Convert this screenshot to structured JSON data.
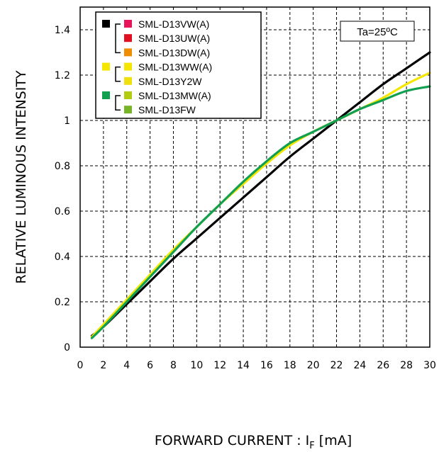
{
  "chart_data": {
    "type": "line",
    "xlabel": "FORWARD CURRENT : I",
    "xlabel_sub": "F",
    "xlabel_unit": " [mA]",
    "ylabel": "RELATIVE LUMINOUS INTENSITY",
    "xlim": [
      0,
      30
    ],
    "ylim": [
      0,
      1.5
    ],
    "x_ticks": [
      0,
      2,
      4,
      6,
      8,
      10,
      12,
      14,
      16,
      18,
      20,
      22,
      24,
      26,
      28,
      30
    ],
    "x_tick_labels": [
      "0",
      "2",
      "4",
      "6",
      "8",
      "10",
      "12",
      "14",
      "16",
      "18",
      "20",
      "22",
      "24",
      "26",
      "28",
      "30"
    ],
    "y_ticks": [
      0,
      0.2,
      0.4,
      0.6,
      0.8,
      1,
      1.2,
      1.4
    ],
    "y_tick_labels": [
      "0",
      "0.2",
      "0.4",
      "0.6",
      "0.8",
      "1",
      "1.2",
      "1.4"
    ],
    "grid": true,
    "annotation": "Ta=25ºC",
    "legend_position": "top-left",
    "legend": {
      "groups": [
        {
          "group_color": "#000000",
          "entries": [
            {
              "label": "SML-D13VW(A)",
              "color": "#e8145a"
            },
            {
              "label": "SML-D13UW(A)",
              "color": "#e01020"
            },
            {
              "label": "SML-D13DW(A)",
              "color": "#f08c00"
            }
          ]
        },
        {
          "group_color": "#f5e600",
          "entries": [
            {
              "label": "SML-D13WW(A)",
              "color": "#f5e600"
            },
            {
              "label": "SML-D13Y2W",
              "color": "#f0e010"
            }
          ]
        },
        {
          "group_color": "#10a050",
          "entries": [
            {
              "label": "SML-D13MW(A)",
              "color": "#b4cc10"
            },
            {
              "label": "SML-D13FW",
              "color": "#78b428"
            }
          ]
        }
      ]
    },
    "series": [
      {
        "color": "#000000",
        "x": [
          1,
          2,
          4,
          6,
          8,
          10,
          12,
          14,
          16,
          18,
          20,
          22,
          24,
          26,
          28,
          30
        ],
        "y": [
          0.05,
          0.09,
          0.19,
          0.29,
          0.39,
          0.48,
          0.57,
          0.66,
          0.75,
          0.84,
          0.92,
          1.0,
          1.08,
          1.16,
          1.23,
          1.3
        ]
      },
      {
        "color": "#f5e600",
        "x": [
          1,
          2,
          4,
          6,
          8,
          10,
          12,
          14,
          16,
          18,
          20,
          22,
          24,
          26,
          28,
          30
        ],
        "y": [
          0.045,
          0.1,
          0.21,
          0.32,
          0.43,
          0.53,
          0.63,
          0.72,
          0.81,
          0.89,
          0.95,
          1.0,
          1.05,
          1.1,
          1.16,
          1.21
        ]
      },
      {
        "color": "#10a050",
        "x": [
          1,
          2,
          4,
          6,
          8,
          10,
          12,
          14,
          16,
          18,
          20,
          22,
          24,
          26,
          28,
          30
        ],
        "y": [
          0.04,
          0.09,
          0.2,
          0.31,
          0.42,
          0.53,
          0.63,
          0.73,
          0.82,
          0.9,
          0.95,
          1.0,
          1.05,
          1.09,
          1.13,
          1.15
        ]
      }
    ]
  }
}
